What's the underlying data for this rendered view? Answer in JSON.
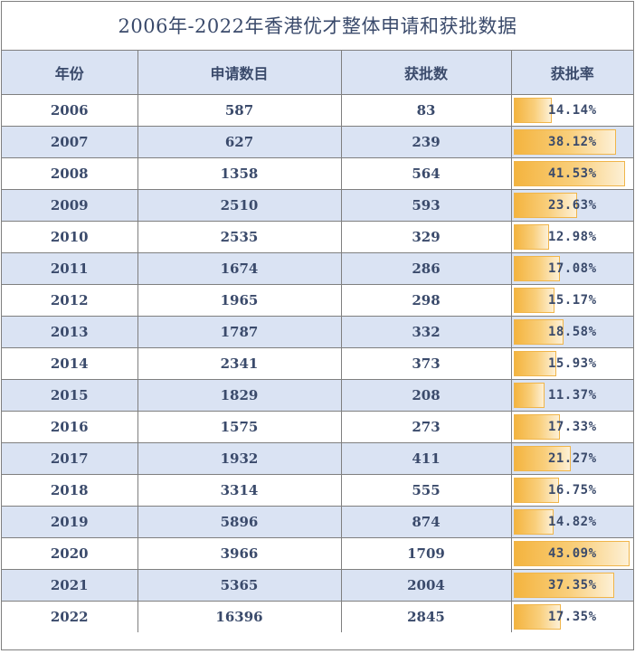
{
  "chart_data": {
    "type": "table",
    "title": "2006年-2022年香港优才整体申请和获批数据",
    "columns": [
      "年份",
      "申请数目",
      "获批数",
      "获批率"
    ],
    "rows": [
      {
        "year": "2006",
        "applications": "587",
        "approved": "83",
        "rate_label": "14.14%",
        "rate": 14.14
      },
      {
        "year": "2007",
        "applications": "627",
        "approved": "239",
        "rate_label": "38.12%",
        "rate": 38.12
      },
      {
        "year": "2008",
        "applications": "1358",
        "approved": "564",
        "rate_label": "41.53%",
        "rate": 41.53
      },
      {
        "year": "2009",
        "applications": "2510",
        "approved": "593",
        "rate_label": "23.63%",
        "rate": 23.63
      },
      {
        "year": "2010",
        "applications": "2535",
        "approved": "329",
        "rate_label": "12.98%",
        "rate": 12.98
      },
      {
        "year": "2011",
        "applications": "1674",
        "approved": "286",
        "rate_label": "17.08%",
        "rate": 17.08
      },
      {
        "year": "2012",
        "applications": "1965",
        "approved": "298",
        "rate_label": "15.17%",
        "rate": 15.17
      },
      {
        "year": "2013",
        "applications": "1787",
        "approved": "332",
        "rate_label": "18.58%",
        "rate": 18.58
      },
      {
        "year": "2014",
        "applications": "2341",
        "approved": "373",
        "rate_label": "15.93%",
        "rate": 15.93
      },
      {
        "year": "2015",
        "applications": "1829",
        "approved": "208",
        "rate_label": "11.37%",
        "rate": 11.37
      },
      {
        "year": "2016",
        "applications": "1575",
        "approved": "273",
        "rate_label": "17.33%",
        "rate": 17.33
      },
      {
        "year": "2017",
        "applications": "1932",
        "approved": "411",
        "rate_label": "21.27%",
        "rate": 21.27
      },
      {
        "year": "2018",
        "applications": "3314",
        "approved": "555",
        "rate_label": "16.75%",
        "rate": 16.75
      },
      {
        "year": "2019",
        "applications": "5896",
        "approved": "874",
        "rate_label": "14.82%",
        "rate": 14.82
      },
      {
        "year": "2020",
        "applications": "3966",
        "approved": "1709",
        "rate_label": "43.09%",
        "rate": 43.09
      },
      {
        "year": "2021",
        "applications": "5365",
        "approved": "2004",
        "rate_label": "37.35%",
        "rate": 37.35
      },
      {
        "year": "2022",
        "applications": "16396",
        "approved": "2845",
        "rate_label": "17.35%",
        "rate": 17.35
      }
    ],
    "data_bar_max": 43.09,
    "colors": {
      "header_bg": "#dae3f3",
      "stripe_bg": "#dae3f3",
      "text": "#3a4a6b",
      "bar": "#f4b43f",
      "border": "#7f7f7f"
    }
  }
}
